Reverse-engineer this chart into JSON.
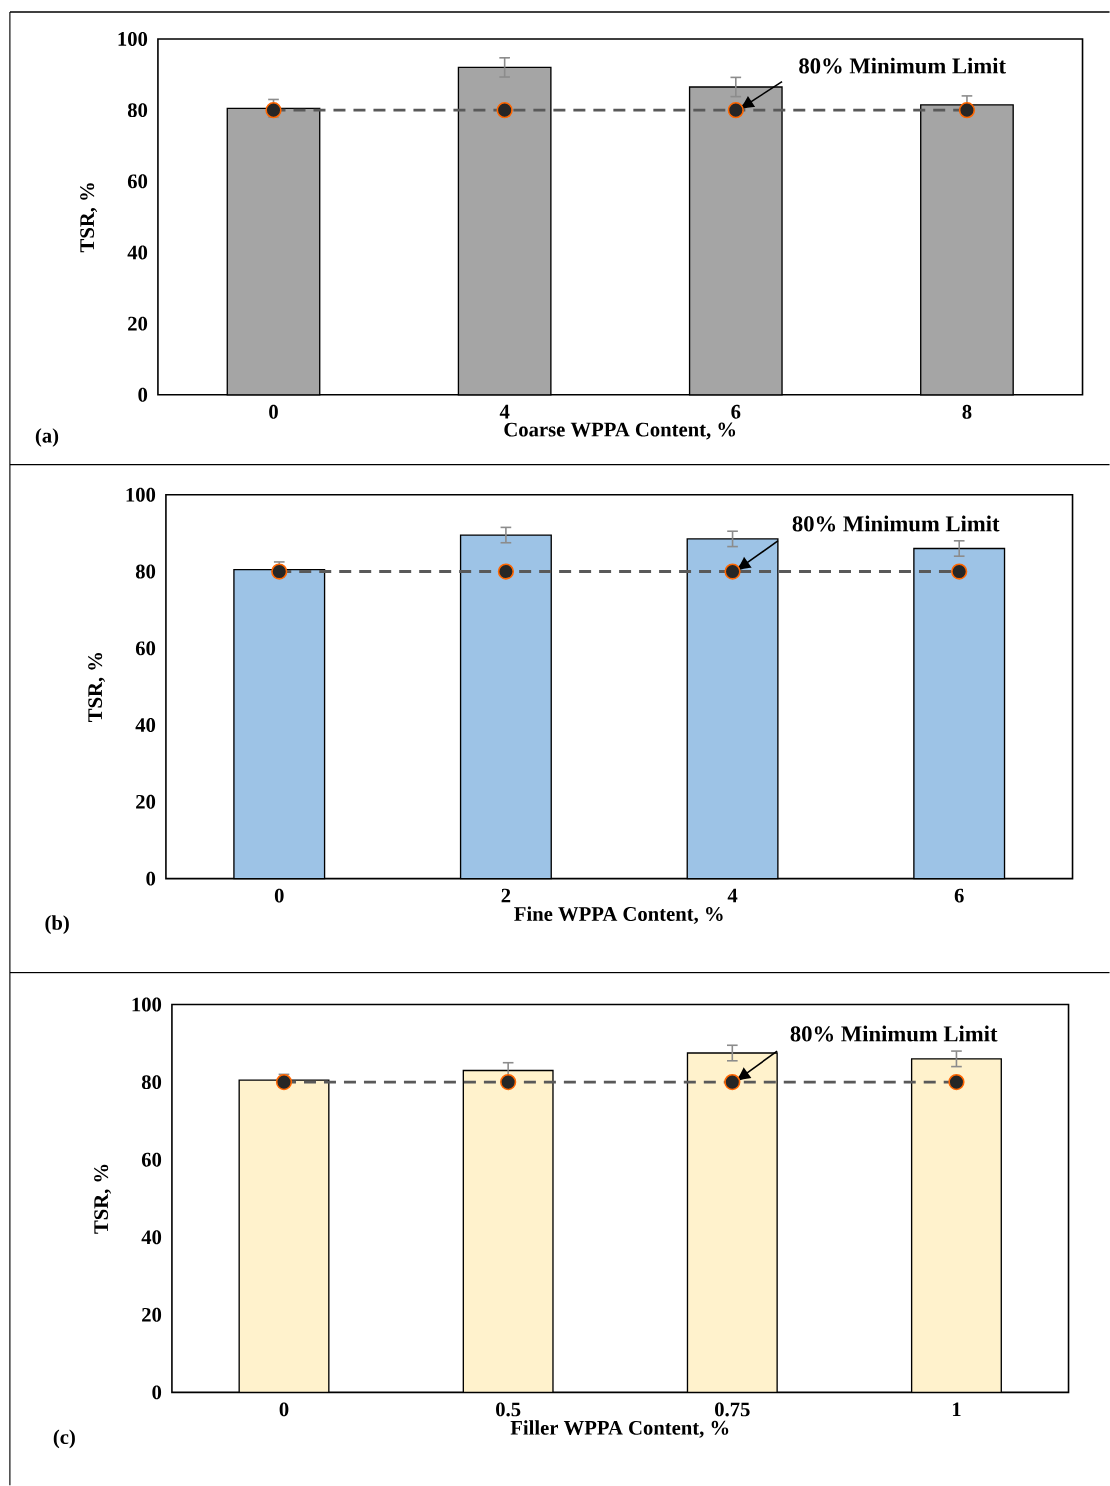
{
  "chart_data": [
    {
      "type": "bar",
      "xlabel": "Coarse WPPA Content, %",
      "ylabel": "TSR, %",
      "categories": [
        "0",
        "4",
        "6",
        "8"
      ],
      "series": [
        {
          "type": "bar",
          "color": "#a5a5a5",
          "values": [
            80.5,
            92,
            86.5,
            81.5
          ],
          "errors": [
            2.5,
            2.7,
            2.7,
            2.5
          ]
        },
        {
          "type": "line",
          "color": "#595959",
          "values": [
            80,
            80,
            80,
            80
          ],
          "marker": "circle",
          "line_style": "dashed"
        }
      ],
      "ylim": [
        0,
        100
      ],
      "yticks": [
        0,
        20,
        40,
        60,
        80,
        100
      ],
      "annotations": [
        "(a)",
        {
          "text": "80% Minimum Limit",
          "y": 80
        }
      ]
    },
    {
      "type": "bar",
      "xlabel": "Fine WPPA Content, %",
      "ylabel": "TSR, %",
      "categories": [
        "0",
        "2",
        "4",
        "6"
      ],
      "series": [
        {
          "type": "bar",
          "color": "#9dc3e6",
          "values": [
            80.5,
            89.5,
            88.5,
            86
          ],
          "errors": [
            2,
            2,
            2,
            2
          ]
        },
        {
          "type": "line",
          "color": "#595959",
          "values": [
            80,
            80,
            80,
            80
          ],
          "marker": "circle",
          "line_style": "dashed"
        }
      ],
      "ylim": [
        0,
        100
      ],
      "yticks": [
        0,
        20,
        40,
        60,
        80,
        100
      ],
      "annotations": [
        "(b)",
        {
          "text": "80% Minimum Limit",
          "y": 80
        }
      ]
    },
    {
      "type": "bar",
      "xlabel": "Filler WPPA Content, %",
      "ylabel": "TSR, %",
      "categories": [
        "0",
        "0.5",
        "0.75",
        "1"
      ],
      "series": [
        {
          "type": "bar",
          "color": "#fff2cc",
          "values": [
            80.5,
            83,
            87.5,
            86
          ],
          "errors": [
            1.5,
            2,
            2,
            2
          ]
        },
        {
          "type": "line",
          "color": "#595959",
          "values": [
            80,
            80,
            80,
            80
          ],
          "marker": "circle",
          "line_style": "dashed"
        }
      ],
      "ylim": [
        0,
        100
      ],
      "yticks": [
        0,
        20,
        40,
        60,
        80,
        100
      ],
      "annotations": [
        "(c)",
        {
          "text": "80% Minimum Limit",
          "y": 80
        }
      ]
    }
  ]
}
